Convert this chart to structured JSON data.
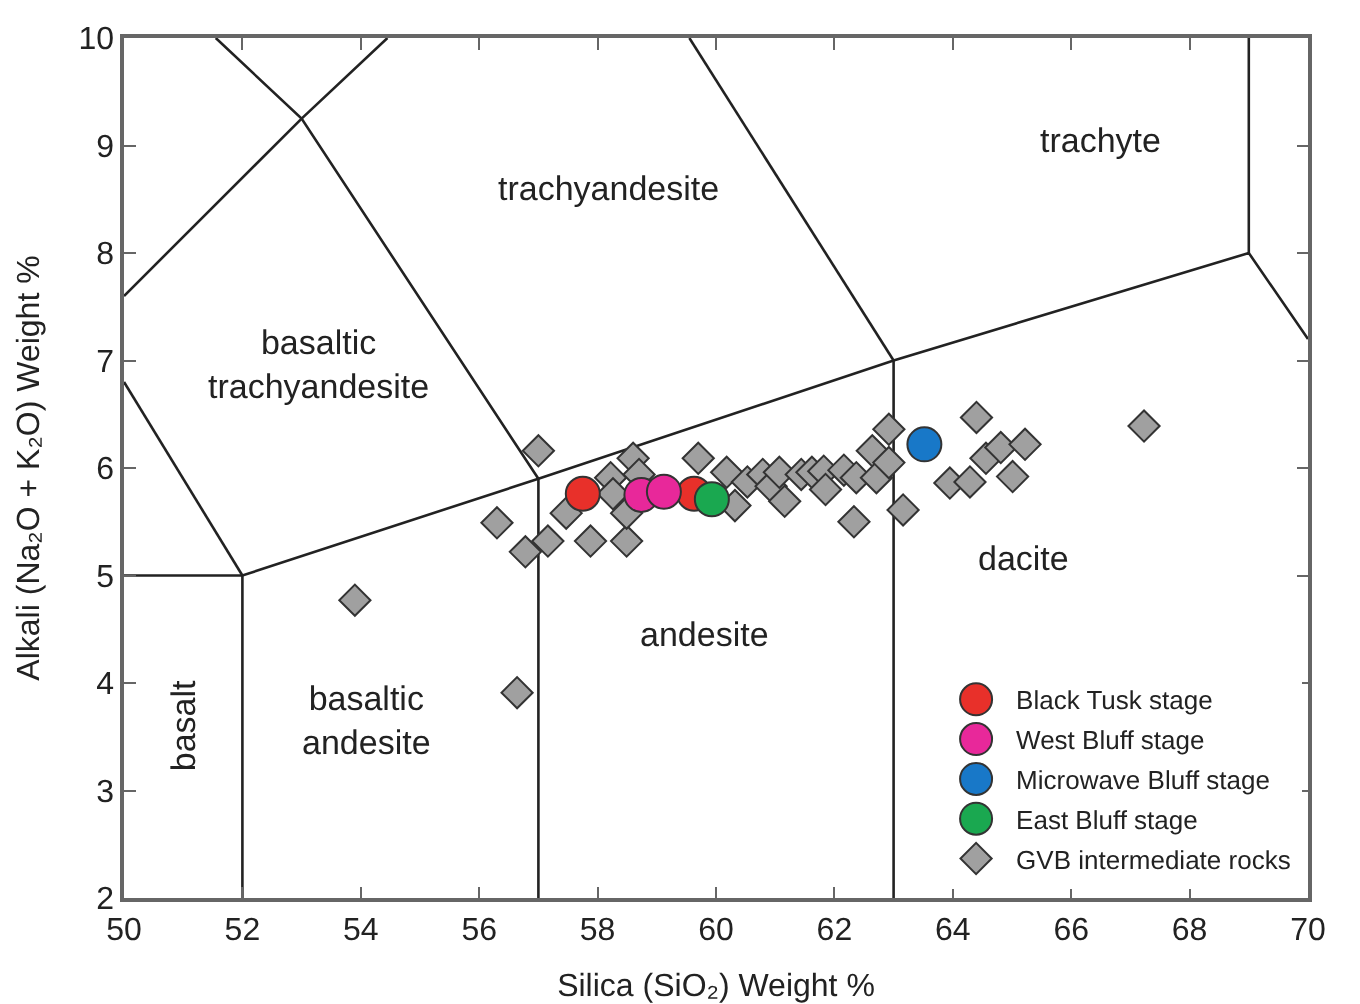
{
  "chart_data": {
    "type": "scatter",
    "xlabel": "Silica (SiO₂) Weight %",
    "ylabel": "Alkali (Na₂O + K₂O) Weight %",
    "xlim": [
      50,
      70
    ],
    "xticks": [
      50,
      52,
      54,
      56,
      58,
      60,
      62,
      64,
      66,
      68,
      70
    ],
    "ylim": [
      2,
      10
    ],
    "yticks": [
      2,
      3,
      4,
      5,
      6,
      7,
      8,
      9,
      10
    ],
    "grid": false,
    "legend": "bottom right",
    "series": [
      {
        "type": "line",
        "color": "#222222",
        "marker": "none",
        "x": [
          50,
          52,
          57,
          63,
          69,
          70
        ],
        "values": [
          5,
          5,
          5.9,
          7,
          8,
          7.2
        ]
      },
      {
        "type": "line",
        "color": "#222222",
        "marker": "none",
        "x": [
          52,
          52
        ],
        "values": [
          2,
          5
        ]
      },
      {
        "type": "line",
        "color": "#222222",
        "marker": "none",
        "x": [
          57,
          57
        ],
        "values": [
          2,
          5.9
        ]
      },
      {
        "type": "line",
        "color": "#222222",
        "marker": "none",
        "x": [
          63,
          63
        ],
        "values": [
          2,
          7
        ]
      },
      {
        "type": "line",
        "color": "#222222",
        "marker": "none",
        "x": [
          69,
          69
        ],
        "values": [
          8,
          10
        ]
      },
      {
        "type": "line",
        "color": "#222222",
        "marker": "none",
        "x": [
          50,
          52
        ],
        "values": [
          6.8,
          5
        ]
      },
      {
        "type": "line",
        "color": "#222222",
        "marker": "none",
        "x": [
          50,
          53,
          54.45
        ],
        "values": [
          7.6,
          9.25,
          10
        ]
      },
      {
        "type": "line",
        "color": "#222222",
        "marker": "none",
        "x": [
          51.55,
          53,
          57
        ],
        "values": [
          10,
          9.25,
          5.9
        ]
      },
      {
        "type": "line",
        "color": "#222222",
        "marker": "none",
        "x": [
          59.55,
          63
        ],
        "values": [
          10,
          7
        ]
      },
      {
        "name": "GVB intermediate rocks",
        "color": "#a0a0a0",
        "marker": "diamond",
        "x": [
          53.9,
          56.64,
          56.3,
          56.78,
          57,
          57.16,
          57.47,
          57.88,
          58.22,
          58.26,
          58.49,
          58.49,
          58.6,
          58.7,
          59.7,
          60.18,
          60.32,
          60.53,
          60.79,
          60.93,
          61.07,
          61.16,
          61.44,
          61.62,
          61.82,
          61.85,
          62.16,
          62.33,
          62.37,
          62.64,
          62.71,
          62.92,
          62.92,
          63.16,
          63.95,
          64.29,
          64.4,
          64.56,
          64.81,
          65.01,
          65.22,
          67.23
        ],
        "values": [
          4.77,
          3.91,
          5.49,
          5.22,
          6.16,
          5.32,
          5.58,
          5.32,
          5.91,
          5.76,
          5.32,
          5.58,
          6.09,
          5.94,
          6.09,
          5.96,
          5.65,
          5.87,
          5.94,
          5.83,
          5.96,
          5.69,
          5.94,
          5.96,
          5.97,
          5.8,
          5.98,
          5.5,
          5.91,
          6.16,
          5.91,
          6.05,
          6.36,
          5.61,
          5.86,
          5.87,
          6.47,
          6.09,
          6.19,
          5.92,
          6.22,
          6.39
        ]
      },
      {
        "name": "Black Tusk stage",
        "color": "#e8302a",
        "marker": "circle",
        "x": [
          57.75,
          59.63
        ],
        "values": [
          5.76,
          5.76
        ]
      },
      {
        "name": "West Bluff stage",
        "color": "#e8289a",
        "marker": "circle",
        "x": [
          58.74,
          59.12
        ],
        "values": [
          5.75,
          5.78
        ]
      },
      {
        "name": "Microwave Bluff stage",
        "color": "#1878c8",
        "marker": "circle",
        "x": [
          63.52
        ],
        "values": [
          6.22
        ]
      },
      {
        "name": "East Bluff stage",
        "color": "#1aa850",
        "marker": "circle",
        "x": [
          59.93
        ],
        "values": [
          5.71
        ]
      }
    ],
    "annotations": [
      "basalt",
      "basaltic\nandesite",
      "andesite",
      "dacite",
      "basaltic\ntrachyandesite",
      "trachyandesite",
      "trachyte"
    ]
  }
}
